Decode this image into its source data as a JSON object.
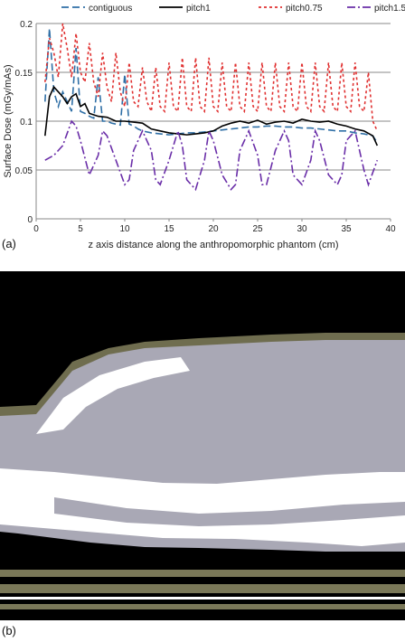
{
  "panel_labels": {
    "a": "(a)",
    "b": "(b)"
  },
  "chart_data": {
    "type": "line",
    "title": "",
    "xlabel": "z axis distance along the anthropomorphic phantom (cm)",
    "ylabel": "Surface Dose (mGy/mAs)",
    "xlim": [
      0,
      40
    ],
    "ylim": [
      0,
      0.2
    ],
    "xticks": [
      "0",
      "5",
      "10",
      "15",
      "20",
      "25",
      "30",
      "35",
      "40"
    ],
    "yticks": [
      "0",
      "0.05",
      "0.1",
      "0.15",
      "0.2"
    ],
    "grid": "horizontal",
    "legend_position": "top",
    "series": [
      {
        "name": "contiguous",
        "color": "#2f6fa6",
        "dash": "8,4",
        "x": [
          1,
          1.5,
          2,
          2.5,
          3,
          3.5,
          4,
          4.5,
          5,
          5.5,
          6,
          6.5,
          7,
          7.5,
          8,
          8.5,
          9,
          9.5,
          10,
          10.5,
          11,
          11.5,
          12,
          13,
          14,
          15,
          16,
          17,
          18,
          19,
          20,
          21,
          22,
          23,
          24,
          25,
          26,
          27,
          28,
          29,
          30,
          31,
          32,
          33,
          34,
          35,
          36,
          37,
          38,
          38.5
        ],
        "y": [
          0.12,
          0.195,
          0.13,
          0.115,
          0.13,
          0.12,
          0.11,
          0.175,
          0.11,
          0.108,
          0.105,
          0.103,
          0.145,
          0.1,
          0.1,
          0.098,
          0.097,
          0.096,
          0.148,
          0.097,
          0.095,
          0.092,
          0.09,
          0.088,
          0.087,
          0.086,
          0.087,
          0.088,
          0.088,
          0.089,
          0.09,
          0.091,
          0.092,
          0.093,
          0.094,
          0.094,
          0.095,
          0.095,
          0.094,
          0.094,
          0.093,
          0.093,
          0.092,
          0.091,
          0.09,
          0.09,
          0.088,
          0.087,
          0.085,
          0.078
        ]
      },
      {
        "name": "pitch1",
        "color": "#000000",
        "dash": "",
        "x": [
          1,
          1.5,
          2,
          2.5,
          3,
          3.5,
          4,
          4.5,
          5,
          5.5,
          6,
          7,
          8,
          9,
          10,
          11,
          12,
          13,
          14,
          15,
          16,
          17,
          18,
          19,
          20,
          21,
          22,
          23,
          24,
          25,
          26,
          27,
          28,
          29,
          30,
          31,
          32,
          33,
          34,
          35,
          36,
          37,
          38,
          38.5
        ],
        "y": [
          0.085,
          0.125,
          0.135,
          0.13,
          0.125,
          0.118,
          0.125,
          0.128,
          0.115,
          0.118,
          0.108,
          0.105,
          0.104,
          0.1,
          0.1,
          0.099,
          0.098,
          0.092,
          0.09,
          0.088,
          0.087,
          0.086,
          0.087,
          0.088,
          0.09,
          0.095,
          0.098,
          0.1,
          0.098,
          0.101,
          0.097,
          0.099,
          0.1,
          0.098,
          0.102,
          0.1,
          0.099,
          0.1,
          0.097,
          0.095,
          0.092,
          0.09,
          0.085,
          0.075
        ]
      },
      {
        "name": "pitch0.75",
        "color": "#e03030",
        "dash": "3,3",
        "x": [
          1,
          1.5,
          2,
          2.5,
          3,
          3.5,
          4,
          4.5,
          5,
          5.5,
          6,
          6.5,
          7,
          7.5,
          8,
          8.5,
          9,
          9.5,
          10,
          10.5,
          11,
          11.5,
          12,
          12.5,
          13,
          13.5,
          14,
          14.5,
          15,
          15.5,
          16,
          16.5,
          17,
          17.5,
          18,
          18.5,
          19,
          19.5,
          20,
          20.5,
          21,
          21.5,
          22,
          22.5,
          23,
          23.5,
          24,
          24.5,
          25,
          25.5,
          26,
          26.5,
          27,
          27.5,
          28,
          28.5,
          29,
          29.5,
          30,
          30.5,
          31,
          31.5,
          32,
          32.5,
          33,
          33.5,
          34,
          34.5,
          35,
          35.5,
          36,
          36.5,
          37,
          37.5,
          38,
          38.5
        ],
        "y": [
          0.14,
          0.185,
          0.17,
          0.145,
          0.2,
          0.175,
          0.145,
          0.19,
          0.15,
          0.14,
          0.18,
          0.14,
          0.125,
          0.17,
          0.135,
          0.12,
          0.17,
          0.13,
          0.115,
          0.16,
          0.12,
          0.115,
          0.155,
          0.12,
          0.11,
          0.155,
          0.115,
          0.11,
          0.16,
          0.115,
          0.11,
          0.165,
          0.115,
          0.11,
          0.165,
          0.115,
          0.11,
          0.165,
          0.115,
          0.11,
          0.16,
          0.115,
          0.11,
          0.16,
          0.115,
          0.11,
          0.16,
          0.115,
          0.11,
          0.16,
          0.115,
          0.11,
          0.16,
          0.115,
          0.11,
          0.16,
          0.115,
          0.11,
          0.16,
          0.115,
          0.11,
          0.16,
          0.115,
          0.11,
          0.16,
          0.115,
          0.11,
          0.16,
          0.115,
          0.11,
          0.16,
          0.115,
          0.11,
          0.15,
          0.1,
          0.09
        ]
      },
      {
        "name": "pitch1.5",
        "color": "#6a2ea8",
        "dash": "9,3,2,3",
        "x": [
          1,
          2,
          3,
          4,
          4.5,
          5,
          6,
          7,
          7.5,
          8,
          9,
          10,
          10.5,
          11,
          12,
          13,
          13.5,
          14,
          15,
          16,
          16.5,
          17,
          18,
          19,
          19.5,
          20,
          21,
          22,
          22.5,
          23,
          24,
          25,
          25.5,
          26,
          27,
          28,
          28.5,
          29,
          30,
          31,
          31.5,
          32,
          33,
          34,
          34.5,
          35,
          36,
          37,
          37.5,
          38.5
        ],
        "y": [
          0.06,
          0.065,
          0.075,
          0.1,
          0.095,
          0.08,
          0.045,
          0.065,
          0.09,
          0.085,
          0.06,
          0.035,
          0.04,
          0.07,
          0.09,
          0.07,
          0.04,
          0.035,
          0.06,
          0.09,
          0.075,
          0.04,
          0.03,
          0.06,
          0.09,
          0.08,
          0.045,
          0.03,
          0.035,
          0.07,
          0.09,
          0.065,
          0.035,
          0.035,
          0.07,
          0.09,
          0.08,
          0.045,
          0.035,
          0.06,
          0.09,
          0.08,
          0.045,
          0.035,
          0.045,
          0.08,
          0.09,
          0.05,
          0.035,
          0.06
        ]
      }
    ]
  },
  "image_b": {
    "description_colors": {
      "background": "#000000",
      "tissue": "#a9a8b5",
      "bone": "#ffffff",
      "table": "#7a7858"
    }
  }
}
